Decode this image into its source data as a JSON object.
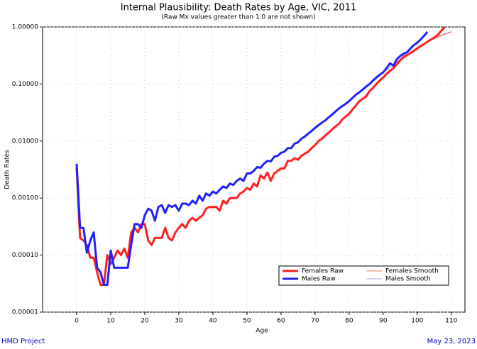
{
  "chart_data": {
    "type": "line",
    "title": "Internal Plausibility: Death Rates by Age, VIC, 2011",
    "subtitle": "(Raw Mx values greater than 1.0 are not shown)",
    "x_label": "Age",
    "y_label": "Death Rates",
    "log_scale": true,
    "grid": true,
    "xlim": [
      -10,
      114
    ],
    "xticks": [
      0,
      10,
      20,
      30,
      40,
      50,
      60,
      70,
      80,
      90,
      100,
      110
    ],
    "ylim": [
      1e-05,
      1
    ],
    "yticks": [
      {
        "value": 1e-05,
        "label": "0.00001"
      },
      {
        "value": 0.0001,
        "label": "0.00010"
      },
      {
        "value": 0.001,
        "label": "0.00100"
      },
      {
        "value": 0.01,
        "label": "0.01000"
      },
      {
        "value": 0.1,
        "label": "0.10000"
      },
      {
        "value": 1,
        "label": "1.00000"
      }
    ],
    "x": [
      0,
      1,
      2,
      3,
      4,
      5,
      6,
      7,
      8,
      9,
      10,
      11,
      12,
      13,
      14,
      15,
      16,
      17,
      18,
      19,
      20,
      21,
      22,
      23,
      24,
      25,
      26,
      27,
      28,
      29,
      30,
      31,
      32,
      33,
      34,
      35,
      36,
      37,
      38,
      39,
      40,
      41,
      42,
      43,
      44,
      45,
      46,
      47,
      48,
      49,
      50,
      51,
      52,
      53,
      54,
      55,
      56,
      57,
      58,
      59,
      60,
      61,
      62,
      63,
      64,
      65,
      66,
      67,
      68,
      69,
      70,
      71,
      72,
      73,
      74,
      75,
      76,
      77,
      78,
      79,
      80,
      81,
      82,
      83,
      84,
      85,
      86,
      87,
      88,
      89,
      90,
      91,
      92,
      93,
      94,
      95,
      96,
      97,
      98,
      99,
      100,
      101,
      102,
      103,
      104,
      105,
      106,
      107,
      108,
      109,
      110
    ],
    "series": [
      {
        "name": "Females Raw",
        "color": "#ff2020",
        "width": 3,
        "values": [
          0.0034,
          0.0002,
          0.00018,
          0.00015,
          9e-05,
          9e-05,
          5e-05,
          3e-05,
          3e-05,
          0.0001,
          7e-05,
          9e-05,
          0.00012,
          0.0001,
          0.00013,
          9e-05,
          0.00025,
          0.0003,
          0.00025,
          0.00035,
          0.00035,
          0.00018,
          0.00015,
          0.0002,
          0.0002,
          0.0002,
          0.0003,
          0.0002,
          0.00018,
          0.00025,
          0.0003,
          0.00035,
          0.0003,
          0.0004,
          0.00045,
          0.0004,
          0.00045,
          0.0005,
          0.00065,
          0.0007,
          0.0007,
          0.0007,
          0.0006,
          0.0009,
          0.0008,
          0.001,
          0.001,
          0.001,
          0.0012,
          0.0013,
          0.0015,
          0.0014,
          0.0018,
          0.0016,
          0.0025,
          0.0022,
          0.0028,
          0.002,
          0.0027,
          0.003,
          0.0033,
          0.0033,
          0.0045,
          0.0045,
          0.005,
          0.0047,
          0.0055,
          0.006,
          0.0065,
          0.0075,
          0.0085,
          0.01,
          0.011,
          0.0125,
          0.014,
          0.016,
          0.018,
          0.02,
          0.024,
          0.027,
          0.03,
          0.036,
          0.042,
          0.05,
          0.055,
          0.06,
          0.075,
          0.085,
          0.1,
          0.115,
          0.13,
          0.15,
          0.17,
          0.19,
          0.22,
          0.26,
          0.3,
          0.32,
          0.35,
          0.38,
          0.42,
          0.46,
          0.5,
          0.55,
          0.6,
          0.65,
          0.72,
          0.85,
          0.98,
          null,
          null
        ]
      },
      {
        "name": "Males Raw",
        "color": "#2020ff",
        "width": 3,
        "values": [
          0.004,
          0.0003,
          0.0003,
          0.00011,
          0.00018,
          0.00025,
          6e-05,
          5e-05,
          3e-05,
          3e-05,
          0.00012,
          6e-05,
          6e-05,
          6e-05,
          6e-05,
          6e-05,
          0.00015,
          0.00035,
          0.00035,
          0.0003,
          0.0005,
          0.00065,
          0.0006,
          0.0004,
          0.0007,
          0.00075,
          0.00055,
          0.00075,
          0.0007,
          0.00075,
          0.0006,
          0.0008,
          0.0008,
          0.00075,
          0.0009,
          0.0008,
          0.0011,
          0.0009,
          0.0012,
          0.0011,
          0.0013,
          0.0012,
          0.0014,
          0.0016,
          0.0015,
          0.0018,
          0.0017,
          0.002,
          0.0022,
          0.002,
          0.0027,
          0.0027,
          0.003,
          0.0035,
          0.0034,
          0.004,
          0.0045,
          0.0044,
          0.0053,
          0.0055,
          0.0062,
          0.0065,
          0.0075,
          0.0075,
          0.009,
          0.0095,
          0.011,
          0.012,
          0.0135,
          0.015,
          0.017,
          0.019,
          0.021,
          0.023,
          0.026,
          0.029,
          0.033,
          0.037,
          0.041,
          0.045,
          0.05,
          0.057,
          0.065,
          0.072,
          0.08,
          0.09,
          0.1,
          0.115,
          0.13,
          0.145,
          0.16,
          0.19,
          0.23,
          0.21,
          0.27,
          0.31,
          0.34,
          0.36,
          0.42,
          0.48,
          0.53,
          0.6,
          0.7,
          0.82,
          null,
          null,
          null,
          null,
          null,
          null,
          null
        ]
      },
      {
        "name": "Females Smooth",
        "color": "#ff8060",
        "width": 1,
        "values": [
          null,
          null,
          null,
          null,
          null,
          null,
          null,
          null,
          null,
          null,
          null,
          null,
          null,
          null,
          null,
          null,
          null,
          null,
          null,
          null,
          null,
          null,
          null,
          null,
          null,
          null,
          null,
          null,
          null,
          null,
          null,
          null,
          null,
          null,
          null,
          null,
          null,
          null,
          null,
          null,
          null,
          null,
          null,
          null,
          null,
          null,
          null,
          null,
          null,
          null,
          null,
          null,
          null,
          null,
          null,
          null,
          null,
          null,
          null,
          null,
          null,
          null,
          null,
          null,
          null,
          null,
          null,
          null,
          null,
          null,
          null,
          null,
          null,
          null,
          null,
          null,
          null,
          null,
          null,
          null,
          0.03,
          0.035,
          0.041,
          0.048,
          0.056,
          0.065,
          0.075,
          0.086,
          0.1,
          0.115,
          0.13,
          0.15,
          0.17,
          0.19,
          0.22,
          0.25,
          0.28,
          0.31,
          0.34,
          0.38,
          0.42,
          0.46,
          0.5,
          0.54,
          0.58,
          0.62,
          0.66,
          0.7,
          0.74,
          0.78,
          0.81
        ]
      },
      {
        "name": "Males Smooth",
        "color": "#a0a0e0",
        "width": 1,
        "values": [
          null,
          null,
          null,
          null,
          null,
          null,
          null,
          null,
          null,
          null,
          null,
          null,
          null,
          null,
          null,
          null,
          null,
          null,
          null,
          null,
          null,
          null,
          null,
          null,
          null,
          null,
          null,
          null,
          null,
          null,
          null,
          null,
          null,
          null,
          null,
          null,
          null,
          null,
          null,
          null,
          null,
          null,
          null,
          null,
          null,
          null,
          null,
          null,
          null,
          null,
          null,
          null,
          null,
          null,
          null,
          null,
          null,
          null,
          null,
          null,
          null,
          null,
          null,
          null,
          null,
          null,
          null,
          null,
          null,
          null,
          null,
          null,
          null,
          null,
          null,
          null,
          null,
          null,
          null,
          null,
          0.05,
          0.056,
          0.063,
          0.071,
          0.08,
          0.09,
          0.1,
          0.112,
          0.125,
          0.14,
          0.157,
          0.175,
          0.195,
          0.215,
          0.24,
          0.27,
          0.3,
          0.33,
          0.36,
          0.4,
          0.44,
          0.48,
          0.52,
          0.56,
          0.6,
          0.64,
          0.68,
          0.72,
          0.76,
          0.8,
          0.83
        ]
      }
    ]
  },
  "footer": {
    "left": "HMD Project",
    "right": "May 23, 2023"
  }
}
